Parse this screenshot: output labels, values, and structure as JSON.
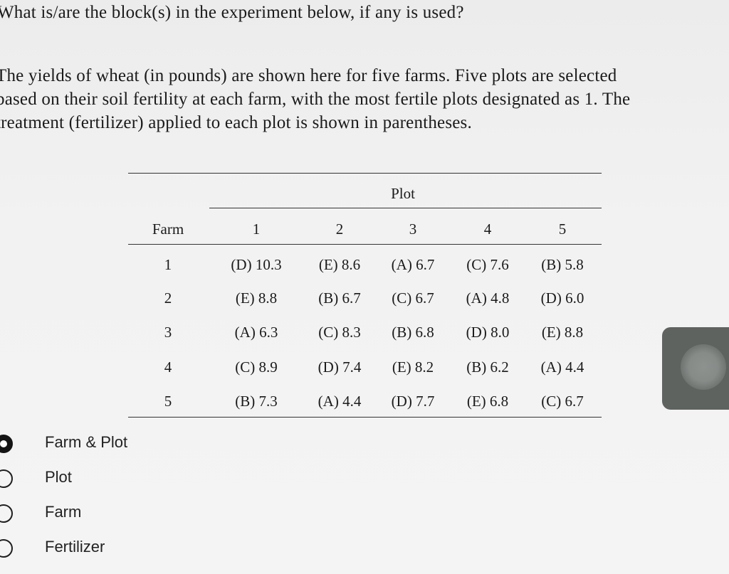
{
  "question": "What is/are the block(s) in the experiment below, if any is used?",
  "paragraph": [
    "The yields of wheat (in pounds) are shown here for five farms. Five plots are selected",
    "based on their soil fertility at each farm, with the most fertile plots designated as 1. The",
    "treatment (fertilizer) applied to each plot is shown in parentheses."
  ],
  "table": {
    "plot_header": "Plot",
    "farm_header": "Farm",
    "plot_columns": [
      "1",
      "2",
      "3",
      "4",
      "5"
    ],
    "rows": [
      {
        "farm": "1",
        "cells": [
          "(D) 10.3",
          "(E) 8.6",
          "(A) 6.7",
          "(C) 7.6",
          "(B) 5.8"
        ]
      },
      {
        "farm": "2",
        "cells": [
          "(E) 8.8",
          "(B) 6.7",
          "(C) 6.7",
          "(A) 4.8",
          "(D) 6.0"
        ]
      },
      {
        "farm": "3",
        "cells": [
          "(A) 6.3",
          "(C) 8.3",
          "(B) 6.8",
          "(D) 8.0",
          "(E) 8.8"
        ]
      },
      {
        "farm": "4",
        "cells": [
          "(C) 8.9",
          "(D) 7.4",
          "(E) 8.2",
          "(B) 6.2",
          "(A) 4.4"
        ]
      },
      {
        "farm": "5",
        "cells": [
          "(B) 7.3",
          "(A) 4.4",
          "(D) 7.7",
          "(E) 6.8",
          "(C) 6.7"
        ]
      }
    ]
  },
  "options": [
    {
      "label": "Farm & Plot",
      "selected": true
    },
    {
      "label": "Plot",
      "selected": false
    },
    {
      "label": "Farm",
      "selected": false
    },
    {
      "label": "Fertilizer",
      "selected": false
    }
  ]
}
